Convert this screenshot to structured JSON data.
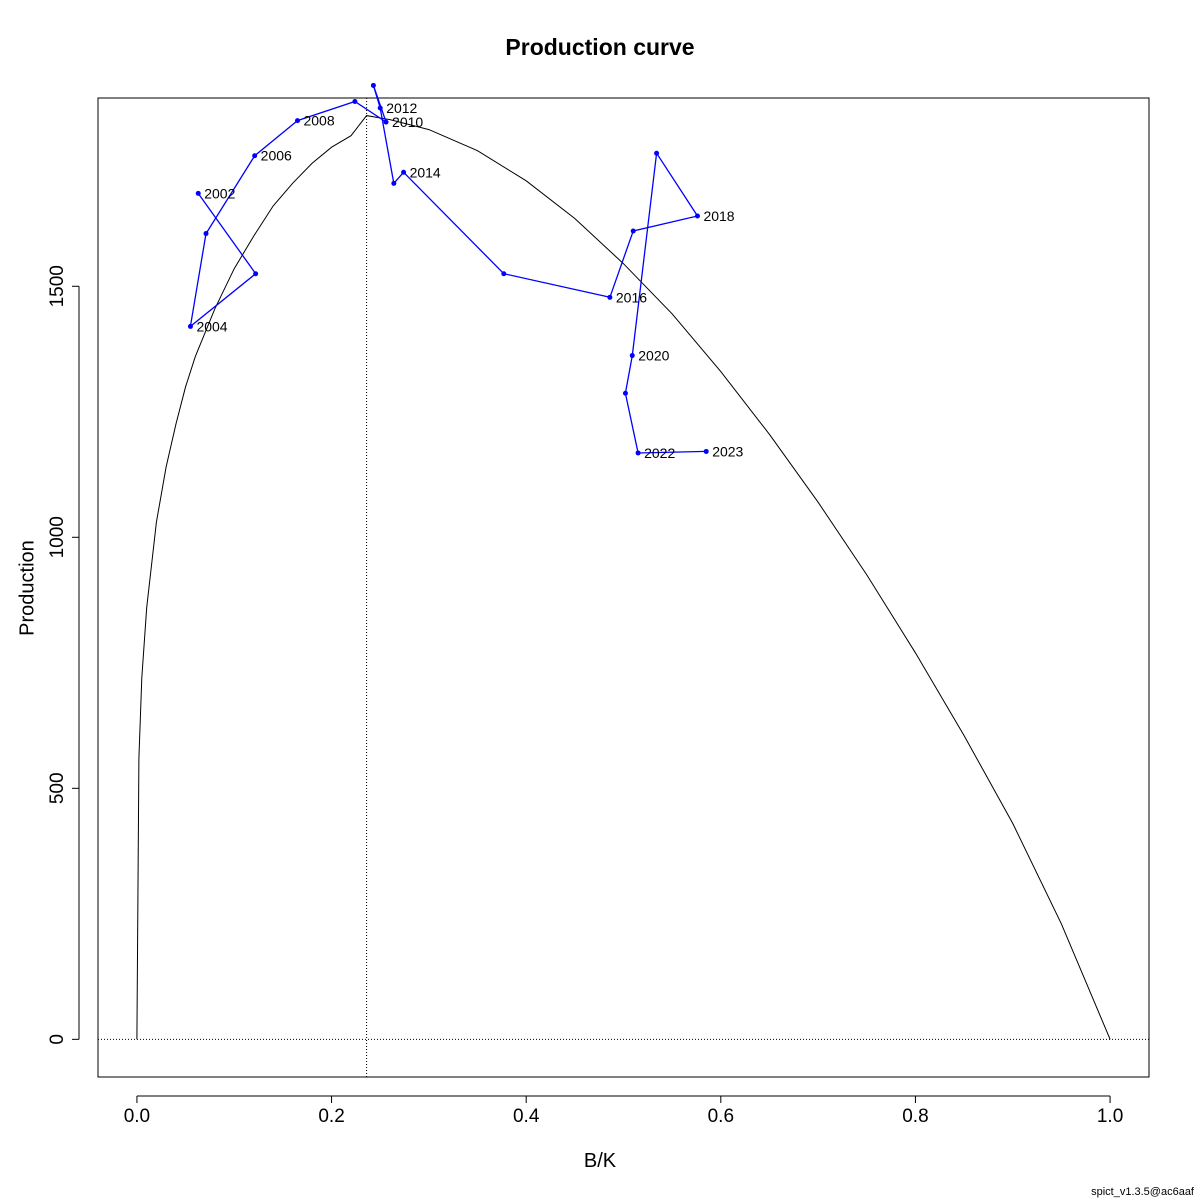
{
  "chart_data": {
    "type": "line",
    "title": "Production curve",
    "xlabel": "B/K",
    "ylabel": "Production",
    "xlim": [
      -0.04,
      1.04
    ],
    "ylim": [
      -75,
      1875
    ],
    "x_ticks": [
      0.0,
      0.2,
      0.4,
      0.6,
      0.8,
      1.0
    ],
    "x_tick_labels": [
      "0.0",
      "0.2",
      "0.4",
      "0.6",
      "0.8",
      "1.0"
    ],
    "y_ticks": [
      0,
      500,
      1000,
      1500
    ],
    "y_tick_labels": [
      "0",
      "500",
      "1000",
      "1500"
    ],
    "reference_lines": {
      "bmsy_k": 0.236,
      "zero_production": 0
    },
    "curve": {
      "x": [
        0.0,
        0.002,
        0.005,
        0.01,
        0.02,
        0.03,
        0.04,
        0.05,
        0.06,
        0.08,
        0.1,
        0.12,
        0.14,
        0.16,
        0.18,
        0.2,
        0.22,
        0.236,
        0.26,
        0.3,
        0.35,
        0.4,
        0.45,
        0.5,
        0.55,
        0.6,
        0.65,
        0.7,
        0.75,
        0.8,
        0.85,
        0.9,
        0.95,
        1.0
      ],
      "y": [
        0,
        560,
        720,
        860,
        1030,
        1140,
        1225,
        1300,
        1360,
        1455,
        1535,
        1600,
        1660,
        1705,
        1745,
        1777,
        1800,
        1840,
        1832,
        1812,
        1770,
        1710,
        1635,
        1545,
        1445,
        1330,
        1205,
        1070,
        925,
        770,
        605,
        430,
        230,
        0
      ]
    },
    "trajectory": {
      "color": "#0000ff",
      "points": [
        {
          "x": 0.063,
          "y": 1685,
          "label": "2002"
        },
        {
          "x": 0.122,
          "y": 1525,
          "label": ""
        },
        {
          "x": 0.055,
          "y": 1420,
          "label": "2004"
        },
        {
          "x": 0.071,
          "y": 1605,
          "label": ""
        },
        {
          "x": 0.121,
          "y": 1760,
          "label": "2006"
        },
        {
          "x": 0.165,
          "y": 1830,
          "label": "2008"
        },
        {
          "x": 0.224,
          "y": 1868,
          "label": ""
        },
        {
          "x": 0.256,
          "y": 1827,
          "label": "2010"
        },
        {
          "x": 0.243,
          "y": 1900,
          "label": ""
        },
        {
          "x": 0.25,
          "y": 1855,
          "label": "2012"
        },
        {
          "x": 0.264,
          "y": 1705,
          "label": ""
        },
        {
          "x": 0.274,
          "y": 1727,
          "label": "2014"
        },
        {
          "x": 0.377,
          "y": 1525,
          "label": ""
        },
        {
          "x": 0.486,
          "y": 1478,
          "label": "2016"
        },
        {
          "x": 0.51,
          "y": 1610,
          "label": ""
        },
        {
          "x": 0.576,
          "y": 1640,
          "label": "2018"
        },
        {
          "x": 0.534,
          "y": 1765,
          "label": ""
        },
        {
          "x": 0.509,
          "y": 1362,
          "label": "2020"
        },
        {
          "x": 0.502,
          "y": 1287,
          "label": ""
        },
        {
          "x": 0.515,
          "y": 1168,
          "label": "2022"
        },
        {
          "x": 0.585,
          "y": 1171,
          "label": "2023"
        }
      ]
    },
    "grid": false,
    "legend": "none"
  },
  "footer_text": "spict_v1.3.5@ac6aaf"
}
